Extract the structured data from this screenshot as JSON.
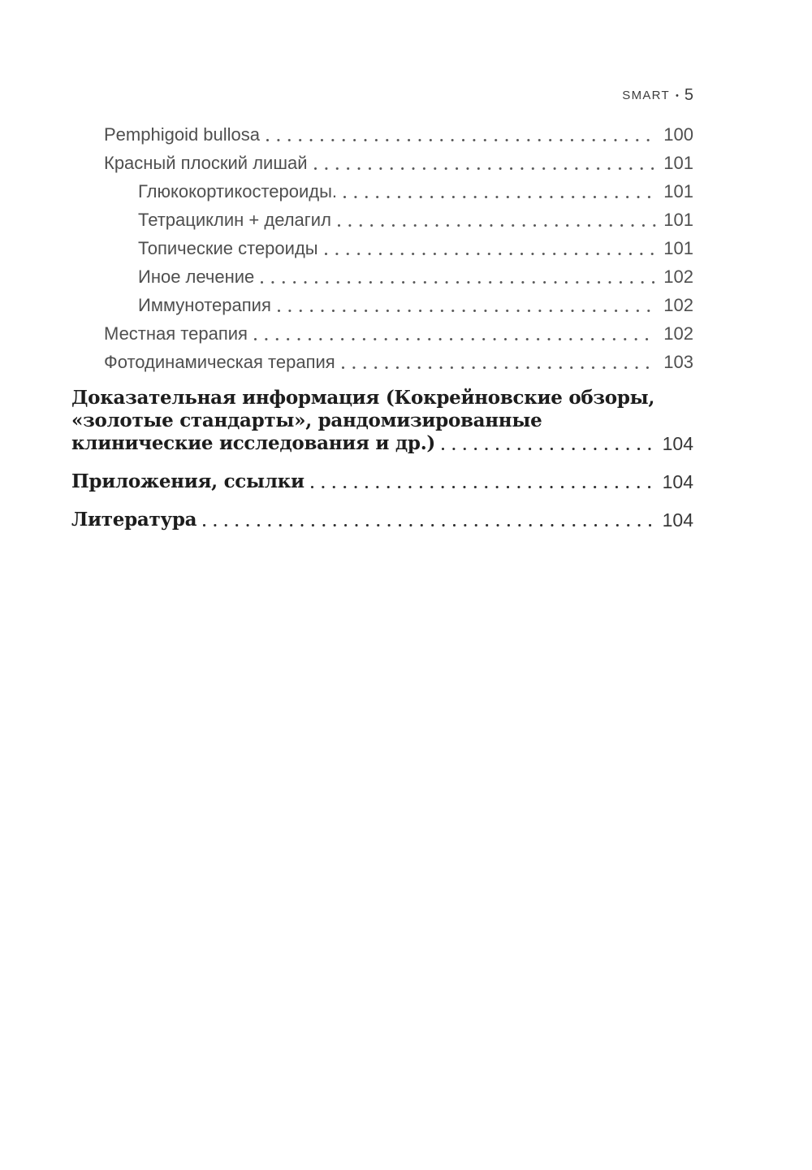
{
  "header": {
    "title": "SMART",
    "separator": "•",
    "page_number": "5"
  },
  "colors": {
    "regular_text": "#4f4f4f",
    "bold_text": "#1d1d1d",
    "header_text": "#3d3d3d",
    "dot_leader": "#595959",
    "background": "#ffffff"
  },
  "toc": {
    "entries": [
      {
        "lines": [
          "Pemphigoid bullosa"
        ],
        "page": "100",
        "level": 1,
        "bold": false
      },
      {
        "lines": [
          "Красный плоский лишай"
        ],
        "page": "101",
        "level": 1,
        "bold": false
      },
      {
        "lines": [
          "Глюкокортикостероиды."
        ],
        "page": "101",
        "level": 2,
        "bold": false
      },
      {
        "lines": [
          "Тетрациклин + делагил"
        ],
        "page": "101",
        "level": 2,
        "bold": false
      },
      {
        "lines": [
          "Топические стероиды"
        ],
        "page": "101",
        "level": 2,
        "bold": false
      },
      {
        "lines": [
          "Иное лечение"
        ],
        "page": "102",
        "level": 2,
        "bold": false
      },
      {
        "lines": [
          "Иммунотерапия"
        ],
        "page": "102",
        "level": 2,
        "bold": false
      },
      {
        "lines": [
          "Местная терапия"
        ],
        "page": "102",
        "level": 1,
        "bold": false
      },
      {
        "lines": [
          "Фотодинамическая терапия"
        ],
        "page": "103",
        "level": 1,
        "bold": false
      },
      {
        "lines": [
          "Доказательная информация (Кокрейновские обзоры,",
          "«золотые стандарты», рандомизированные",
          "клинические исследования и др.)"
        ],
        "page": "104",
        "level": 0,
        "bold": true
      },
      {
        "lines": [
          "Приложения, ссылки"
        ],
        "page": "104",
        "level": 0,
        "bold": true
      },
      {
        "lines": [
          "Литература"
        ],
        "page": "104",
        "level": 0,
        "bold": true
      }
    ]
  }
}
